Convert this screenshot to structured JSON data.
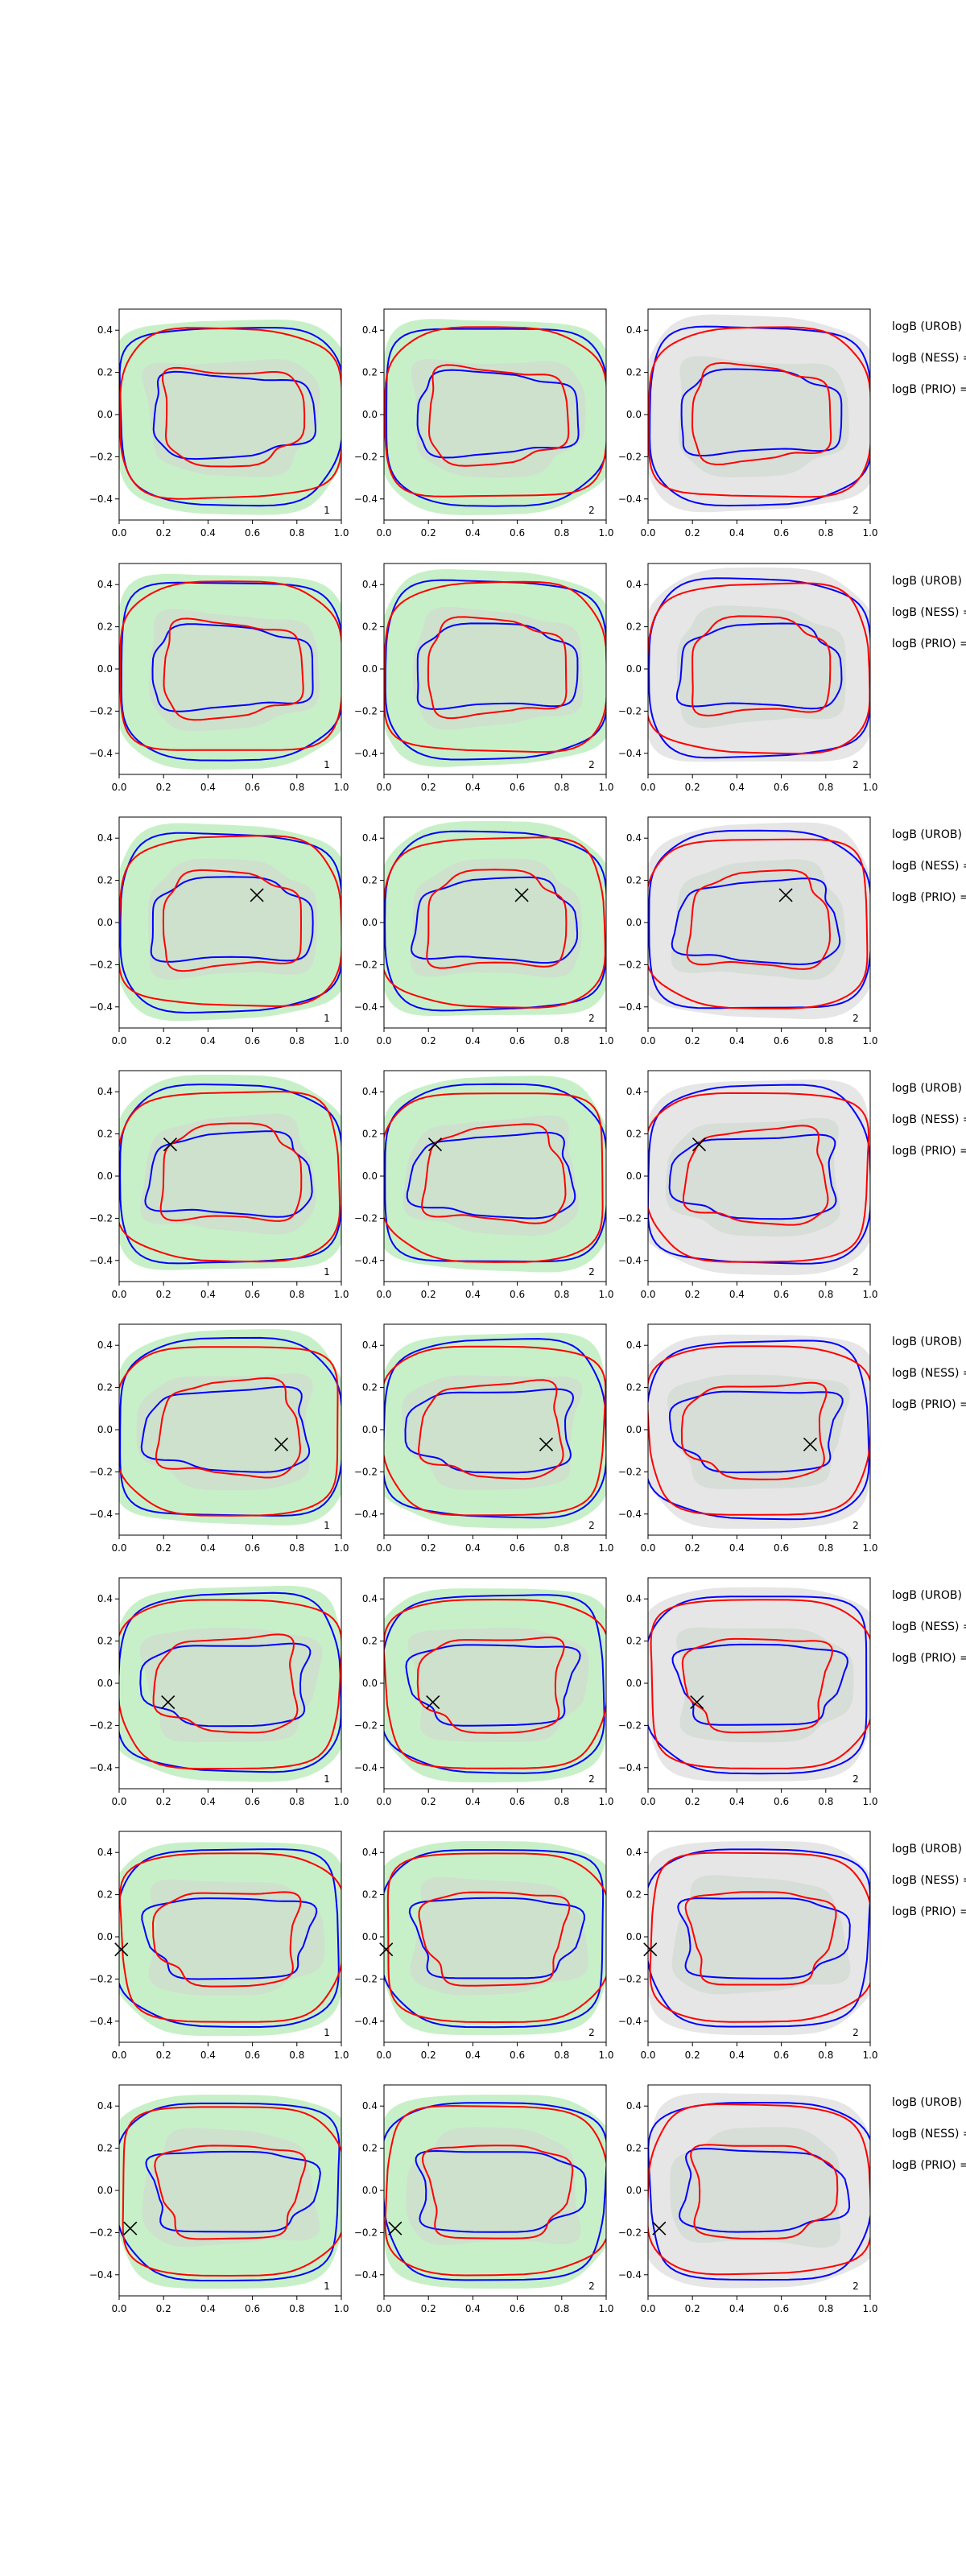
{
  "figure": {
    "shared_axes": {
      "x_ticks": [
        "0.0",
        "0.2",
        "0.4",
        "0.6",
        "0.8",
        "1.0"
      ],
      "y_ticks": [
        "0.4",
        "0.2",
        "0.0",
        "−0.2",
        "−0.4"
      ]
    },
    "panel_labels": [
      "1",
      "2",
      "2"
    ],
    "logB_labels": [
      "logB (UROB) =",
      "logB (NESS) =",
      "logB (PRIO) ="
    ],
    "colors": {
      "frame": "#000000",
      "fill_panel_1_2": "#c8f0c8",
      "fill_panel_3": "#e6e6e6",
      "inner_fill": "#cfd8cf",
      "blue_contour": "#0000ff",
      "red_contour": "#ff0000"
    }
  },
  "chart_data": {
    "type": "contour",
    "grid": {
      "rows": 8,
      "cols": 3
    },
    "xlim": [
      0,
      1
    ],
    "ylim": [
      -0.5,
      0.5
    ],
    "rows": [
      {
        "row": 1,
        "marker": null
      },
      {
        "row": 2,
        "marker": null
      },
      {
        "row": 3,
        "marker": {
          "x": 0.62,
          "y": 0.13
        }
      },
      {
        "row": 4,
        "marker": {
          "x": 0.23,
          "y": 0.15
        }
      },
      {
        "row": 5,
        "marker": {
          "x": 0.73,
          "y": -0.07
        }
      },
      {
        "row": 6,
        "marker": {
          "x": 0.22,
          "y": -0.09
        }
      },
      {
        "row": 7,
        "marker": {
          "x": 0.01,
          "y": -0.06
        }
      },
      {
        "row": 8,
        "marker": {
          "x": 0.05,
          "y": -0.18
        }
      }
    ],
    "contour_levels": [
      {
        "name": "blue_outer",
        "rx": 0.5,
        "ry": 0.42,
        "phase": 0.0
      },
      {
        "name": "blue_inner",
        "rx": 0.36,
        "ry": 0.19,
        "phase": 1.3
      },
      {
        "name": "red_outer",
        "rx": 0.5,
        "ry": 0.4,
        "phase": 2.1
      },
      {
        "name": "red_inner",
        "rx": 0.31,
        "ry": 0.22,
        "phase": 0.7
      }
    ]
  }
}
